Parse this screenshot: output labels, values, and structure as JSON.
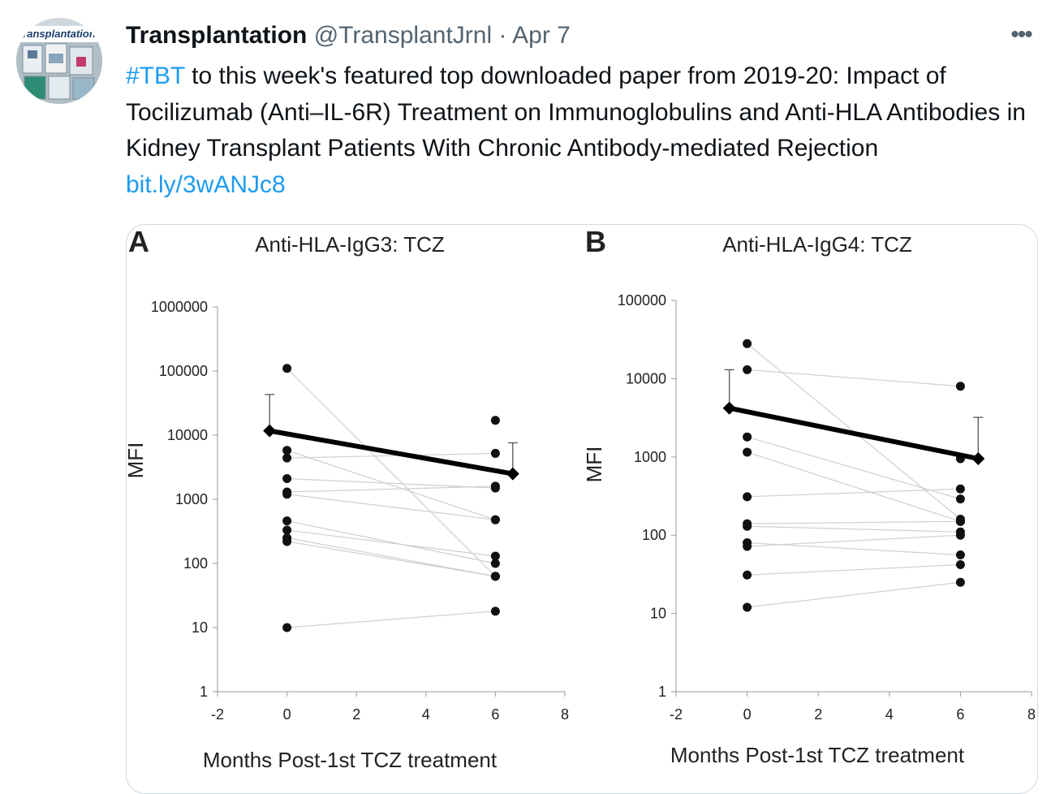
{
  "tweet": {
    "author_name": "Transplantation",
    "handle": "@TransplantJrnl",
    "separator": "·",
    "date": "Apr 7",
    "more_label": "•••",
    "avatar_text": "ransplantation",
    "hashtag": "#TBT",
    "body": " to this week's featured top downloaded paper from 2019-20: Impact of Tocilizumab (Anti–IL-6R) Treatment on Immunoglobulins and Anti-HLA Antibodies in Kidney Transplant Patients With Chronic Antibody-mediated Rejection ",
    "link": "bit.ly/3wANJc8"
  },
  "colors": {
    "link": "#1d9bf0",
    "secondary_text": "#536471",
    "border": "#cfd9de"
  },
  "chart_data": [
    {
      "type": "scatter",
      "panel_label": "A",
      "title": "Anti-HLA-IgG3: TCZ",
      "xlabel": "Months Post-1st TCZ treatment",
      "ylabel": "MFI",
      "xlim": [
        -2,
        8
      ],
      "x_ticks": [
        "-2",
        "0",
        "2",
        "4",
        "6",
        "8"
      ],
      "ylim": [
        1,
        1000000
      ],
      "y_scale": "log",
      "y_ticks": [
        "1",
        "10",
        "100",
        "1000",
        "10000",
        "100000",
        "1000000"
      ],
      "patients": [
        [
          0,
          110000,
          6,
          63
        ],
        [
          0,
          5800,
          6,
          480
        ],
        [
          0,
          4400,
          6,
          5200
        ],
        [
          0,
          2100,
          6,
          1500
        ],
        [
          0,
          1300,
          6,
          1600
        ],
        [
          0,
          1200,
          6,
          480
        ],
        [
          0,
          460,
          6,
          100
        ],
        [
          0,
          330,
          6,
          130
        ],
        [
          0,
          250,
          6,
          63
        ],
        [
          0,
          220,
          6,
          63
        ],
        [
          0,
          10,
          6,
          18
        ]
      ],
      "extra_points": [
        [
          6,
          17000
        ]
      ],
      "mean_line": {
        "x": [
          -0.5,
          6.5
        ],
        "y": [
          11700,
          2500
        ]
      },
      "error_bars": [
        {
          "x": -0.5,
          "y": 11700,
          "upper": 43000
        },
        {
          "x": 6.5,
          "y": 2500,
          "upper": 7600
        }
      ]
    },
    {
      "type": "scatter",
      "panel_label": "B",
      "title": "Anti-HLA-IgG4: TCZ",
      "xlabel": "Months Post-1st TCZ treatment",
      "ylabel": "MFI",
      "xlim": [
        -2,
        8
      ],
      "x_ticks": [
        "-2",
        "0",
        "2",
        "4",
        "6",
        "8"
      ],
      "ylim": [
        1,
        100000
      ],
      "y_scale": "log",
      "y_ticks": [
        "1",
        "10",
        "100",
        "1000",
        "10000",
        "100000"
      ],
      "patients": [
        [
          0,
          28000,
          6,
          160
        ],
        [
          0,
          13000,
          6,
          8000
        ],
        [
          0,
          1800,
          6,
          290
        ],
        [
          0,
          1150,
          6,
          150
        ],
        [
          0,
          310,
          6,
          390
        ],
        [
          0,
          140,
          6,
          150
        ],
        [
          0,
          130,
          6,
          110
        ],
        [
          0,
          80,
          6,
          56
        ],
        [
          0,
          72,
          6,
          100
        ],
        [
          0,
          31,
          6,
          42
        ],
        [
          0,
          12,
          6,
          25
        ]
      ],
      "extra_points": [
        [
          6,
          950
        ]
      ],
      "mean_line": {
        "x": [
          -0.5,
          6.5
        ],
        "y": [
          4200,
          950
        ]
      },
      "error_bars": [
        {
          "x": -0.5,
          "y": 4200,
          "upper": 13000
        },
        {
          "x": 6.5,
          "y": 950,
          "upper": 3200
        }
      ]
    }
  ]
}
